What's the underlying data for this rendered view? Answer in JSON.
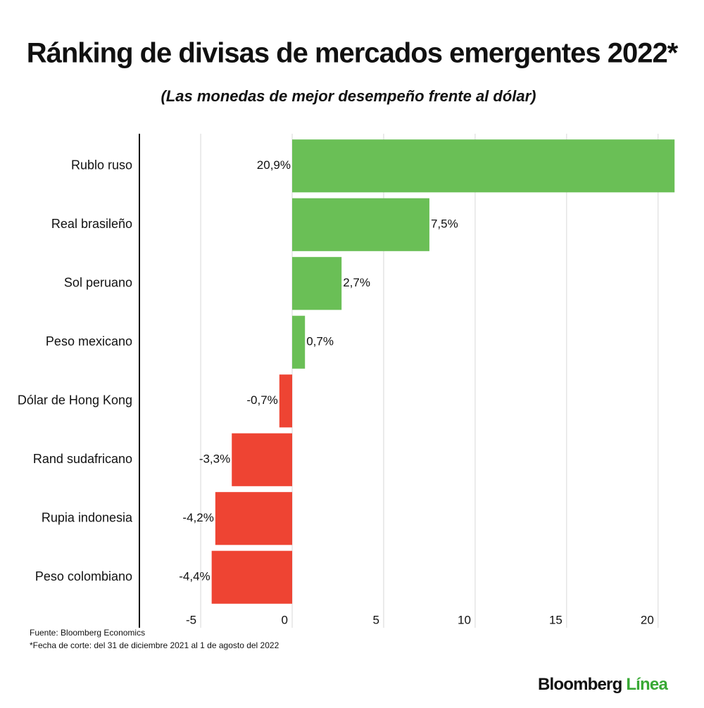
{
  "chart_data": {
    "type": "hbar",
    "title": "Ránking de divisas de mercados emergentes 2022*",
    "subtitle": "(Las monedas de mejor desempeño frente al dólar)",
    "categories": [
      "Rublo ruso",
      "Real brasileño",
      "Sol peruano",
      "Peso mexicano",
      "Dólar de Hong Kong",
      "Rand sudafricano",
      "Rupia indonesia",
      "Peso colombiano"
    ],
    "values": [
      20.9,
      7.5,
      2.7,
      0.7,
      -0.7,
      -3.3,
      -4.2,
      -4.4
    ],
    "value_labels": [
      "20,9%",
      "7,5%",
      "2,7%",
      "0,7%",
      "-0,7%",
      "-3,3%",
      "-4,2%",
      "-4,4%"
    ],
    "colors": [
      "#6abf56",
      "#6abf56",
      "#6abf56",
      "#6abf56",
      "#ee4433",
      "#ee4433",
      "#ee4433",
      "#ee4433"
    ],
    "xlim": [
      -8.35,
      21.2
    ],
    "xticks": [
      -5,
      0,
      5,
      10,
      15,
      20
    ],
    "grid": true,
    "source": "Fuente: Bloomberg Economics",
    "footnote": "*Fecha de corte: del 31 de diciembre 2021 al 1 de agosto del 2022",
    "logo": {
      "name": "Bloomberg",
      "suffix": "Línea"
    }
  }
}
